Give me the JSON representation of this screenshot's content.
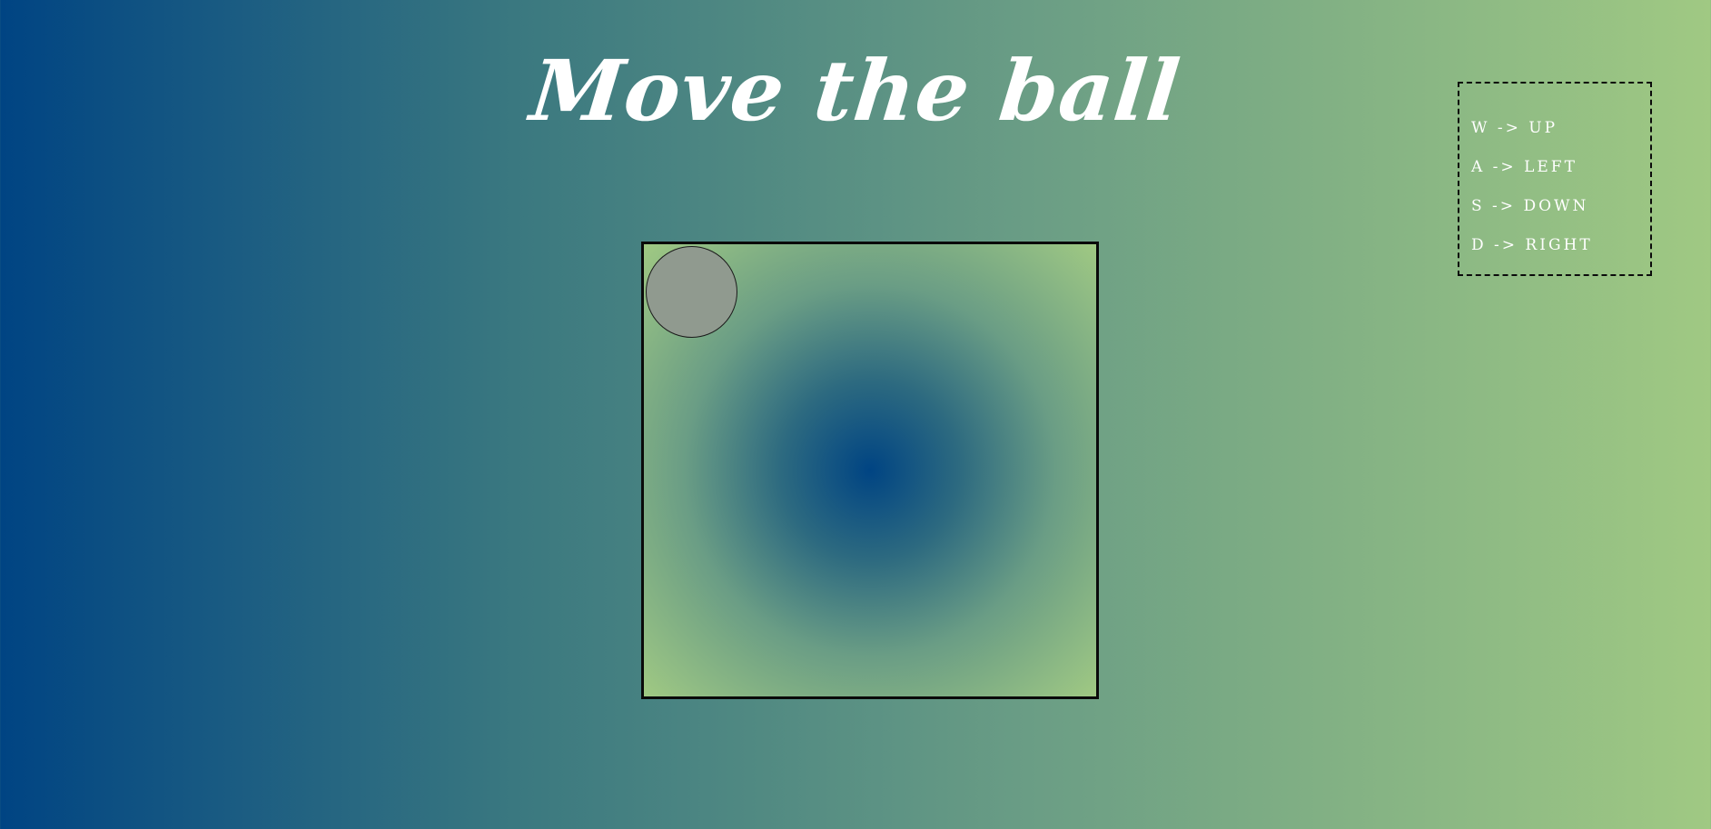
{
  "title": "Move the ball",
  "controls": [
    {
      "key": "W",
      "action": "UP",
      "text": "W -> UP"
    },
    {
      "key": "A",
      "action": "LEFT",
      "text": "A -> LEFT"
    },
    {
      "key": "S",
      "action": "DOWN",
      "text": "S -> DOWN"
    },
    {
      "key": "D",
      "action": "RIGHT",
      "text": "D -> RIGHT"
    }
  ],
  "colors": {
    "gradient_start": "#004483",
    "gradient_end": "#a0c983",
    "ball": "#909a8f",
    "text": "#ffffff",
    "border": "#0a0a0a"
  }
}
